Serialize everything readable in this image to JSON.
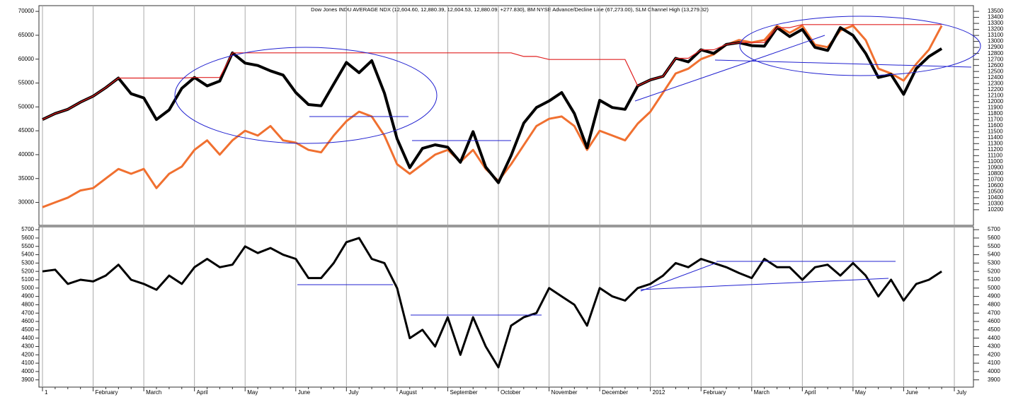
{
  "chart_data": [
    {
      "type": "line",
      "title": "Dow Jones INDU AVERAGE NDX (12,604.60, 12,880.39, 12,604.53, 12,880.09, +277.830), BM NYSE Advance/Decline Line (67,273.00), SLM Channel High (13,279.32)",
      "categories": [
        "1",
        null,
        null,
        null,
        "February",
        null,
        null,
        null,
        "March",
        null,
        null,
        null,
        "April",
        null,
        null,
        null,
        "May",
        null,
        null,
        null,
        "June",
        null,
        null,
        null,
        "July",
        null,
        null,
        null,
        "August",
        null,
        null,
        null,
        "September",
        null,
        null,
        null,
        "October",
        null,
        null,
        null,
        "November",
        null,
        null,
        null,
        "December",
        null,
        null,
        null,
        "2012",
        null,
        null,
        null,
        "February",
        null,
        null,
        null,
        "March",
        null,
        null,
        null,
        "April",
        null,
        null,
        null,
        "May",
        null,
        null,
        null,
        "June",
        null,
        null,
        null,
        "July"
      ],
      "series": [
        {
          "color": "#f07030",
          "axis": "y",
          "width": 3,
          "values": [
            29000,
            30000,
            31000,
            32500,
            33000,
            35000,
            37000,
            36000,
            37000,
            33000,
            36000,
            37500,
            41000,
            43000,
            40000,
            43000,
            45000,
            44000,
            46000,
            43000,
            42500,
            41000,
            40500,
            44000,
            47000,
            49000,
            48000,
            44000,
            38000,
            36000,
            38000,
            40000,
            41000,
            38500,
            41000,
            37000,
            34500,
            38000,
            42000,
            46000,
            47500,
            48000,
            46000,
            41000,
            45000,
            44000,
            43000,
            46500,
            49000,
            53000,
            57000,
            58000,
            60000,
            61000,
            63000,
            64000,
            63500,
            64000,
            67000,
            65500,
            67000,
            63000,
            62500,
            66000,
            67000,
            64000,
            58000,
            57000,
            55500,
            59000,
            62000,
            67000,
            null
          ]
        },
        {
          "color": "#000000",
          "axis": "y2",
          "width": 4,
          "values": [
            11700,
            11800,
            11870,
            11990,
            12090,
            12230,
            12390,
            12130,
            12060,
            11700,
            11860,
            12220,
            12400,
            12260,
            12340,
            12810,
            12640,
            12600,
            12510,
            12440,
            12150,
            11950,
            11930,
            12290,
            12650,
            12480,
            12680,
            12140,
            11380,
            10900,
            11220,
            11280,
            11240,
            10990,
            11500,
            10910,
            10650,
            11100,
            11640,
            11900,
            12010,
            12150,
            11800,
            11230,
            12020,
            11900,
            11870,
            12260,
            12360,
            12420,
            12720,
            12660,
            12860,
            12800,
            12950,
            12980,
            12930,
            12920,
            13230,
            13080,
            13200,
            12900,
            12850,
            13230,
            13100,
            12800,
            12400,
            12450,
            12120,
            12550,
            12750,
            12880,
            null
          ]
        },
        {
          "color": "#e02020",
          "axis": "y2",
          "width": 1.2,
          "values": [
            11700,
            11800,
            11870,
            11990,
            12090,
            12230,
            12390,
            12390,
            12390,
            12390,
            12390,
            12390,
            12400,
            12400,
            12400,
            12810,
            12810,
            12810,
            12810,
            12810,
            12810,
            12810,
            12810,
            12810,
            12810,
            12810,
            12810,
            12810,
            12810,
            12810,
            12810,
            12810,
            12810,
            12810,
            12810,
            12810,
            12810,
            12810,
            12750,
            12750,
            12700,
            12700,
            12700,
            12700,
            12700,
            12700,
            12700,
            12260,
            12360,
            12420,
            12720,
            12720,
            12860,
            12860,
            12950,
            12980,
            12980,
            12980,
            13230,
            13230,
            13280,
            13280,
            13280,
            13280,
            13280,
            13280,
            13280,
            13280,
            13280,
            13280,
            13280,
            13280,
            null
          ]
        }
      ],
      "ylim": [
        25200,
        71200
      ],
      "yticks": [
        30000,
        35000,
        40000,
        45000,
        50000,
        55000,
        60000,
        65000,
        70000
      ],
      "y2lim": [
        9940,
        13595
      ],
      "y2ticks": [
        10200,
        10300,
        10400,
        10500,
        10600,
        10700,
        10800,
        10900,
        11000,
        11100,
        11200,
        11300,
        11400,
        11500,
        11600,
        11700,
        11800,
        11900,
        12000,
        12100,
        12200,
        12300,
        12400,
        12500,
        12600,
        12700,
        12800,
        12900,
        13000,
        13100,
        13200,
        13300,
        13400,
        13500
      ],
      "grid": true
    },
    {
      "type": "line",
      "categories": [
        "1",
        null,
        null,
        null,
        "February",
        null,
        null,
        null,
        "March",
        null,
        null,
        null,
        "April",
        null,
        null,
        null,
        "May",
        null,
        null,
        null,
        "June",
        null,
        null,
        null,
        "July",
        null,
        null,
        null,
        "August",
        null,
        null,
        null,
        "September",
        null,
        null,
        null,
        "October",
        null,
        null,
        null,
        "November",
        null,
        null,
        null,
        "December",
        null,
        null,
        null,
        "2012",
        null,
        null,
        null,
        "February",
        null,
        null,
        null,
        "March",
        null,
        null,
        null,
        "April",
        null,
        null,
        null,
        "May",
        null,
        null,
        null,
        "June",
        null,
        null,
        null,
        "July"
      ],
      "series": [
        {
          "color": "#000000",
          "width": 3,
          "values": [
            5200,
            5220,
            5050,
            5100,
            5080,
            5150,
            5280,
            5100,
            5050,
            4980,
            5150,
            5050,
            5250,
            5350,
            5250,
            5280,
            5500,
            5420,
            5480,
            5400,
            5350,
            5120,
            5120,
            5300,
            5550,
            5600,
            5350,
            5300,
            5000,
            4400,
            4500,
            4300,
            4650,
            4200,
            4650,
            4300,
            4050,
            4550,
            4650,
            4700,
            5000,
            4900,
            4800,
            4550,
            5000,
            4900,
            4850,
            5000,
            5050,
            5150,
            5300,
            5250,
            5350,
            5300,
            5250,
            5180,
            5120,
            5350,
            5250,
            5250,
            5100,
            5250,
            5280,
            5150,
            5300,
            5150,
            4900,
            5100,
            4850,
            5050,
            5100,
            5200,
            null
          ]
        }
      ],
      "ylim": [
        3813,
        5735
      ],
      "yticks": [
        3900,
        4000,
        4100,
        4200,
        4300,
        4400,
        4500,
        4600,
        4700,
        4800,
        4900,
        5000,
        5100,
        5200,
        5300,
        5400,
        5500,
        5600,
        5700
      ],
      "grid": true
    }
  ]
}
